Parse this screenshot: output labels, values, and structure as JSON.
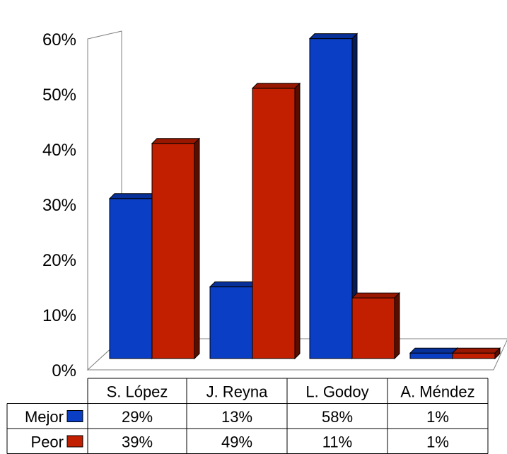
{
  "chart_data": {
    "type": "bar",
    "categories": [
      "S. López",
      "J. Reyna",
      "L. Godoy",
      "A. Méndez"
    ],
    "series": [
      {
        "name": "Mejor",
        "values": [
          29,
          13,
          58,
          1
        ],
        "labels": [
          "29%",
          "13%",
          "58%",
          "1%"
        ],
        "color": "#0A3EC4"
      },
      {
        "name": "Peor",
        "values": [
          39,
          49,
          11,
          1
        ],
        "labels": [
          "39%",
          "49%",
          "11%",
          "1%"
        ],
        "color": "#C21E00"
      }
    ],
    "yticks": [
      "0%",
      "10%",
      "20%",
      "30%",
      "40%",
      "50%",
      "60%"
    ],
    "ylim": [
      0,
      60
    ],
    "grid": false,
    "legend": "data-table",
    "style": "3d-clustered-column"
  }
}
